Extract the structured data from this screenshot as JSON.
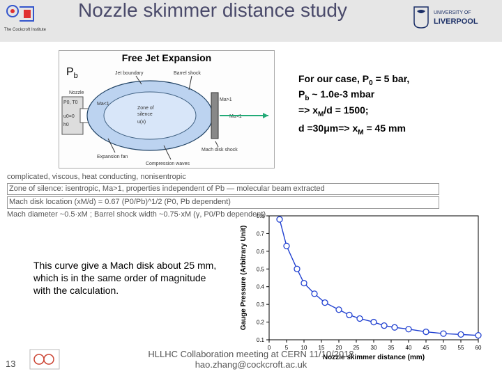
{
  "title": "Nozzle skimmer distance study",
  "diagram": {
    "title": "Free Jet Expansion",
    "pb_label_html": "P<sub>b</sub>",
    "labels": {
      "jet_boundary": "Jet boundary",
      "barrel_shock": "Barrel shock",
      "nozzle": "Nozzle",
      "ma_lt1": "Ma<1",
      "ma_gt1": "Ma>1",
      "mach_disk": "Mach disk shock",
      "zone": "Zone of silence",
      "ux": "u(x)",
      "expansion": "Expansion fan",
      "compression": "Compression waves",
      "p0t0": "P0, T0",
      "u0": "u0=0",
      "h0": "h0"
    }
  },
  "right_text": {
    "line1_html": "For our case, P<sub>0</sub> = 5 bar,",
    "line2_html": "P<sub>b</sub> ~ 1.0e-3 mbar",
    "line3_html": "=> x<sub>M</sub>/d = 1500;",
    "line4_html": "d =30μm=> x<sub>M</sub> = 45 mm"
  },
  "mid_text": {
    "l1": "complicated, viscous, heat conducting, nonisentropic",
    "l2": "Zone of silence: isentropic, Ma>1, properties independent of Pb — molecular beam extracted",
    "l3": "Mach disk location (xM/d) = 0.67 (P0/Pb)^1/2  (P0, Pb dependent)",
    "l4": "Mach diameter ~0.5·xM ; Barrel shock width ~0.75·xM (γ, P0/Pb dependent)"
  },
  "left_caption": "This curve give a Mach disk about 25 mm, which is in the same order of magnitude with the calculation.",
  "chart": {
    "type": "scatter-line",
    "xlabel": "Nozzle skimmer distance (mm)",
    "ylabel": "Gauge Pressure (Arbitrary Unit)",
    "xlim": [
      0,
      60
    ],
    "ylim": [
      0.1,
      0.8
    ],
    "xtick_step": 5,
    "ytick_step": 0.1,
    "marker": "circle",
    "marker_size": 4,
    "line_color": "#2040d0",
    "marker_color": "#2040d0",
    "background_color": "#ffffff",
    "axis_color": "#000000",
    "label_fontsize": 10,
    "tick_fontsize": 8,
    "x": [
      3,
      5,
      8,
      10,
      13,
      16,
      20,
      23,
      26,
      30,
      33,
      36,
      40,
      45,
      50,
      55,
      60
    ],
    "y": [
      0.78,
      0.63,
      0.5,
      0.42,
      0.36,
      0.31,
      0.27,
      0.24,
      0.22,
      0.2,
      0.18,
      0.17,
      0.16,
      0.145,
      0.135,
      0.13,
      0.125
    ]
  },
  "footer": {
    "line1": "HLLHC Collaboration meeting at CERN 11/10/2018",
    "line2": "hao.zhang@cockcroft.ac.uk"
  },
  "page_number": "13",
  "logos": {
    "cockcroft_text": "The Cockcroft Institute",
    "liverpool_text": "UNIVERSITY OF LIVERPOOL"
  },
  "colors": {
    "header_bg": "#e6e6e6",
    "title_color": "#4a4a6a",
    "accent_blue": "#2040d0",
    "liverpool_blue": "#1a2e66"
  }
}
